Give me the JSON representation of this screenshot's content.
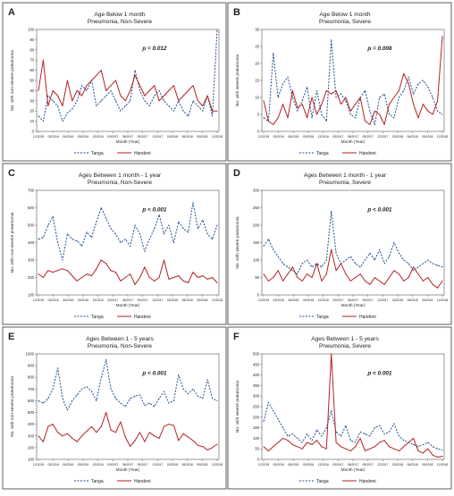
{
  "figure": {
    "x_ticks": [
      "12/2015",
      "03/2016",
      "06/2016",
      "09/2016",
      "12/2016",
      "03/2017",
      "06/2017",
      "09/2017",
      "12/2017",
      "03/2018",
      "06/2018",
      "09/2018",
      "12/2018"
    ],
    "legend_labels": [
      "Tanga",
      "Handeni"
    ]
  },
  "chart_data": [
    {
      "id": "A",
      "type": "line",
      "title": "Age Below 1 month",
      "subtitle": "Pneumonia, Non-Severe",
      "xlabel": "Month (Year)",
      "ylabel": "No. with non-severe pneumonia",
      "p_value": "p = 0.012",
      "yticks": [
        "0",
        "10",
        "20",
        "30",
        "40",
        "50",
        "60",
        "70",
        "80",
        "90",
        "100"
      ],
      "ylim": [
        0,
        100
      ],
      "legend": "bottom",
      "series": [
        {
          "name": "Tanga",
          "values": [
            15,
            10,
            35,
            30,
            25,
            10,
            18,
            22,
            30,
            45,
            40,
            50,
            25,
            30,
            35,
            40,
            30,
            20,
            25,
            30,
            60,
            40,
            30,
            25,
            35,
            40,
            30,
            25,
            20,
            30,
            20,
            15,
            30,
            25,
            20,
            35,
            15,
            100
          ],
          "color": "#1f4e8c",
          "style": "dashed"
        },
        {
          "name": "Handeni",
          "values": [
            40,
            70,
            25,
            40,
            35,
            25,
            50,
            30,
            40,
            35,
            45,
            50,
            55,
            60,
            40,
            45,
            50,
            35,
            30,
            40,
            55,
            45,
            35,
            40,
            45,
            30,
            35,
            40,
            45,
            30,
            35,
            40,
            45,
            30,
            25,
            35,
            20,
            20
          ],
          "color": "#b22222",
          "style": "solid"
        }
      ]
    },
    {
      "id": "B",
      "type": "line",
      "title": "Age Below 1 month",
      "subtitle": "Pneumonia, Severe",
      "xlabel": "Month (Year)",
      "ylabel": "No. with severe pneumonia",
      "p_value": "p = 0.008",
      "yticks": [
        "0",
        "5",
        "10",
        "15",
        "20",
        "25",
        "30"
      ],
      "ylim": [
        0,
        30
      ],
      "legend": "bottom",
      "series": [
        {
          "name": "Tanga",
          "values": [
            4,
            3,
            23,
            10,
            14,
            16,
            10,
            6,
            9,
            13,
            4,
            12,
            5,
            3,
            27,
            10,
            11,
            9,
            5,
            4,
            10,
            12,
            6,
            2,
            10,
            11,
            5,
            4,
            10,
            12,
            16,
            11,
            14,
            15,
            13,
            10,
            6,
            5
          ],
          "color": "#1f4e8c",
          "style": "dashed"
        },
        {
          "name": "Handeni",
          "values": [
            9,
            3,
            2,
            4,
            8,
            4,
            12,
            7,
            8,
            4,
            10,
            5,
            8,
            12,
            11,
            12,
            8,
            10,
            6,
            8,
            10,
            3,
            2,
            6,
            5,
            2,
            8,
            10,
            12,
            17,
            14,
            8,
            4,
            8,
            6,
            5,
            9,
            28
          ],
          "color": "#b22222",
          "style": "solid"
        }
      ]
    },
    {
      "id": "C",
      "type": "line",
      "title": "Ages Between 1 month - 1 year",
      "subtitle": "Pneumonia, Non-Severe",
      "xlabel": "Month (Year)",
      "ylabel": "No. with non-severe pneumonia",
      "p_value": "p < 0.001",
      "yticks": [
        "100",
        "200",
        "300",
        "400",
        "500",
        "600",
        "700"
      ],
      "ylim": [
        100,
        700
      ],
      "legend": "bottom",
      "series": [
        {
          "name": "Tanga",
          "values": [
            420,
            430,
            500,
            550,
            400,
            300,
            450,
            420,
            410,
            380,
            460,
            430,
            520,
            600,
            540,
            480,
            450,
            400,
            420,
            380,
            500,
            450,
            350,
            420,
            480,
            560,
            450,
            500,
            400,
            520,
            480,
            460,
            630,
            480,
            530,
            450,
            420,
            500
          ],
          "color": "#1f4e8c",
          "style": "dashed"
        },
        {
          "name": "Handeni",
          "values": [
            220,
            200,
            240,
            230,
            240,
            250,
            240,
            210,
            180,
            200,
            220,
            210,
            250,
            300,
            280,
            240,
            230,
            180,
            200,
            220,
            160,
            200,
            260,
            200,
            180,
            200,
            300,
            190,
            200,
            210,
            180,
            170,
            230,
            200,
            210,
            190,
            200,
            170
          ],
          "color": "#b22222",
          "style": "solid"
        }
      ]
    },
    {
      "id": "D",
      "type": "line",
      "title": "Ages Between 1 month - 1 year",
      "subtitle": "Pneumonia, Severe",
      "xlabel": "Month (Year)",
      "ylabel": "No. with severe pneumonia",
      "p_value": "p < 0.001",
      "yticks": [
        "0",
        "50",
        "100",
        "150",
        "200",
        "250",
        "300"
      ],
      "ylim": [
        0,
        300
      ],
      "legend": "bottom",
      "series": [
        {
          "name": "Tanga",
          "values": [
            140,
            160,
            130,
            110,
            90,
            80,
            70,
            60,
            90,
            100,
            80,
            90,
            80,
            100,
            240,
            120,
            90,
            100,
            110,
            90,
            80,
            100,
            120,
            100,
            130,
            90,
            110,
            150,
            120,
            100,
            90,
            70,
            80,
            90,
            100,
            90,
            85,
            80
          ],
          "color": "#1f4e8c",
          "style": "dashed"
        },
        {
          "name": "Handeni",
          "values": [
            60,
            40,
            50,
            70,
            40,
            60,
            80,
            50,
            40,
            60,
            50,
            90,
            40,
            60,
            130,
            70,
            90,
            60,
            40,
            50,
            60,
            40,
            30,
            50,
            40,
            30,
            50,
            70,
            60,
            40,
            50,
            80,
            60,
            40,
            50,
            30,
            20,
            40
          ],
          "color": "#b22222",
          "style": "solid"
        }
      ]
    },
    {
      "id": "E",
      "type": "line",
      "title": "Ages Between 1 - 5 years",
      "subtitle": "Pneumonia, Non-Severe",
      "xlabel": "Month (Year)",
      "ylabel": "No. with non-severe pneumonia",
      "p_value": "p < 0.001",
      "yticks": [
        "100",
        "200",
        "300",
        "400",
        "500",
        "600",
        "700",
        "800",
        "900",
        "1000"
      ],
      "ylim": [
        100,
        1000
      ],
      "legend": "bottom",
      "series": [
        {
          "name": "Tanga",
          "values": [
            600,
            580,
            620,
            700,
            880,
            620,
            520,
            600,
            650,
            700,
            720,
            680,
            600,
            800,
            950,
            700,
            620,
            580,
            550,
            620,
            640,
            650,
            560,
            580,
            550,
            620,
            680,
            580,
            600,
            820,
            700,
            660,
            700,
            640,
            620,
            780,
            620,
            600
          ],
          "color": "#1f4e8c",
          "style": "dashed"
        },
        {
          "name": "Handeni",
          "values": [
            300,
            250,
            380,
            400,
            330,
            300,
            320,
            280,
            250,
            300,
            340,
            380,
            330,
            380,
            500,
            350,
            330,
            420,
            290,
            210,
            260,
            330,
            250,
            330,
            300,
            280,
            380,
            400,
            390,
            260,
            320,
            290,
            260,
            220,
            210,
            180,
            200,
            230
          ],
          "color": "#b22222",
          "style": "solid"
        }
      ]
    },
    {
      "id": "F",
      "type": "line",
      "title": "Ages Between 1 - 5 years",
      "subtitle": "Pneumonia, Severe",
      "xlabel": "Month (Year)",
      "ylabel": "No. with severe pneumonia",
      "p_value": "p < 0.001",
      "yticks": [
        "0",
        "50",
        "100",
        "150",
        "200",
        "250",
        "300",
        "350",
        "400",
        "450",
        "500"
      ],
      "ylim": [
        0,
        500
      ],
      "legend": "bottom",
      "series": [
        {
          "name": "Tanga",
          "values": [
            180,
            270,
            230,
            190,
            150,
            110,
            120,
            100,
            80,
            120,
            90,
            140,
            110,
            150,
            230,
            130,
            110,
            160,
            90,
            80,
            130,
            120,
            110,
            150,
            160,
            120,
            130,
            170,
            110,
            90,
            80,
            70,
            60,
            70,
            80,
            60,
            50,
            45
          ],
          "color": "#1f4e8c",
          "style": "dashed"
        },
        {
          "name": "Handeni",
          "values": [
            60,
            40,
            60,
            80,
            100,
            90,
            70,
            60,
            50,
            80,
            70,
            90,
            60,
            50,
            500,
            80,
            60,
            50,
            40,
            60,
            100,
            40,
            50,
            60,
            80,
            90,
            60,
            50,
            40,
            60,
            80,
            100,
            40,
            30,
            50,
            20,
            10,
            15
          ],
          "color": "#b22222",
          "style": "solid"
        }
      ]
    }
  ]
}
